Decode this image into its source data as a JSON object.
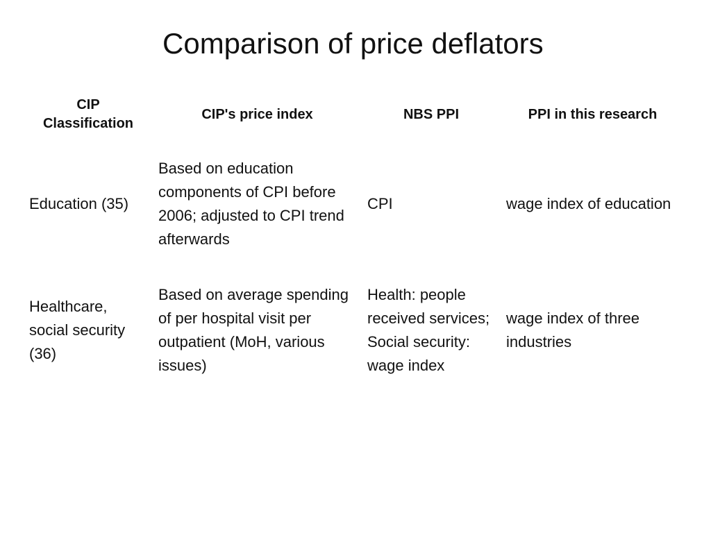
{
  "slide": {
    "title": "Comparison of price deflators"
  },
  "table": {
    "headers": [
      "CIP\nClassification",
      "CIP's price index",
      "NBS PPI",
      "PPI in this research"
    ],
    "rows": [
      {
        "classification": "Education (35)",
        "cip_price_index": "Based on education components of CPI before 2006; adjusted to CPI trend afterwards",
        "nbs_ppi": "CPI",
        "ppi_research": "wage index of education"
      },
      {
        "classification": "Healthcare, social security (36)",
        "cip_price_index": "Based on average spending of per hospital visit per outpatient (MoH, various issues)",
        "nbs_ppi": "Health: people received services; Social security: wage index",
        "ppi_research": "wage index of three industries"
      }
    ]
  }
}
